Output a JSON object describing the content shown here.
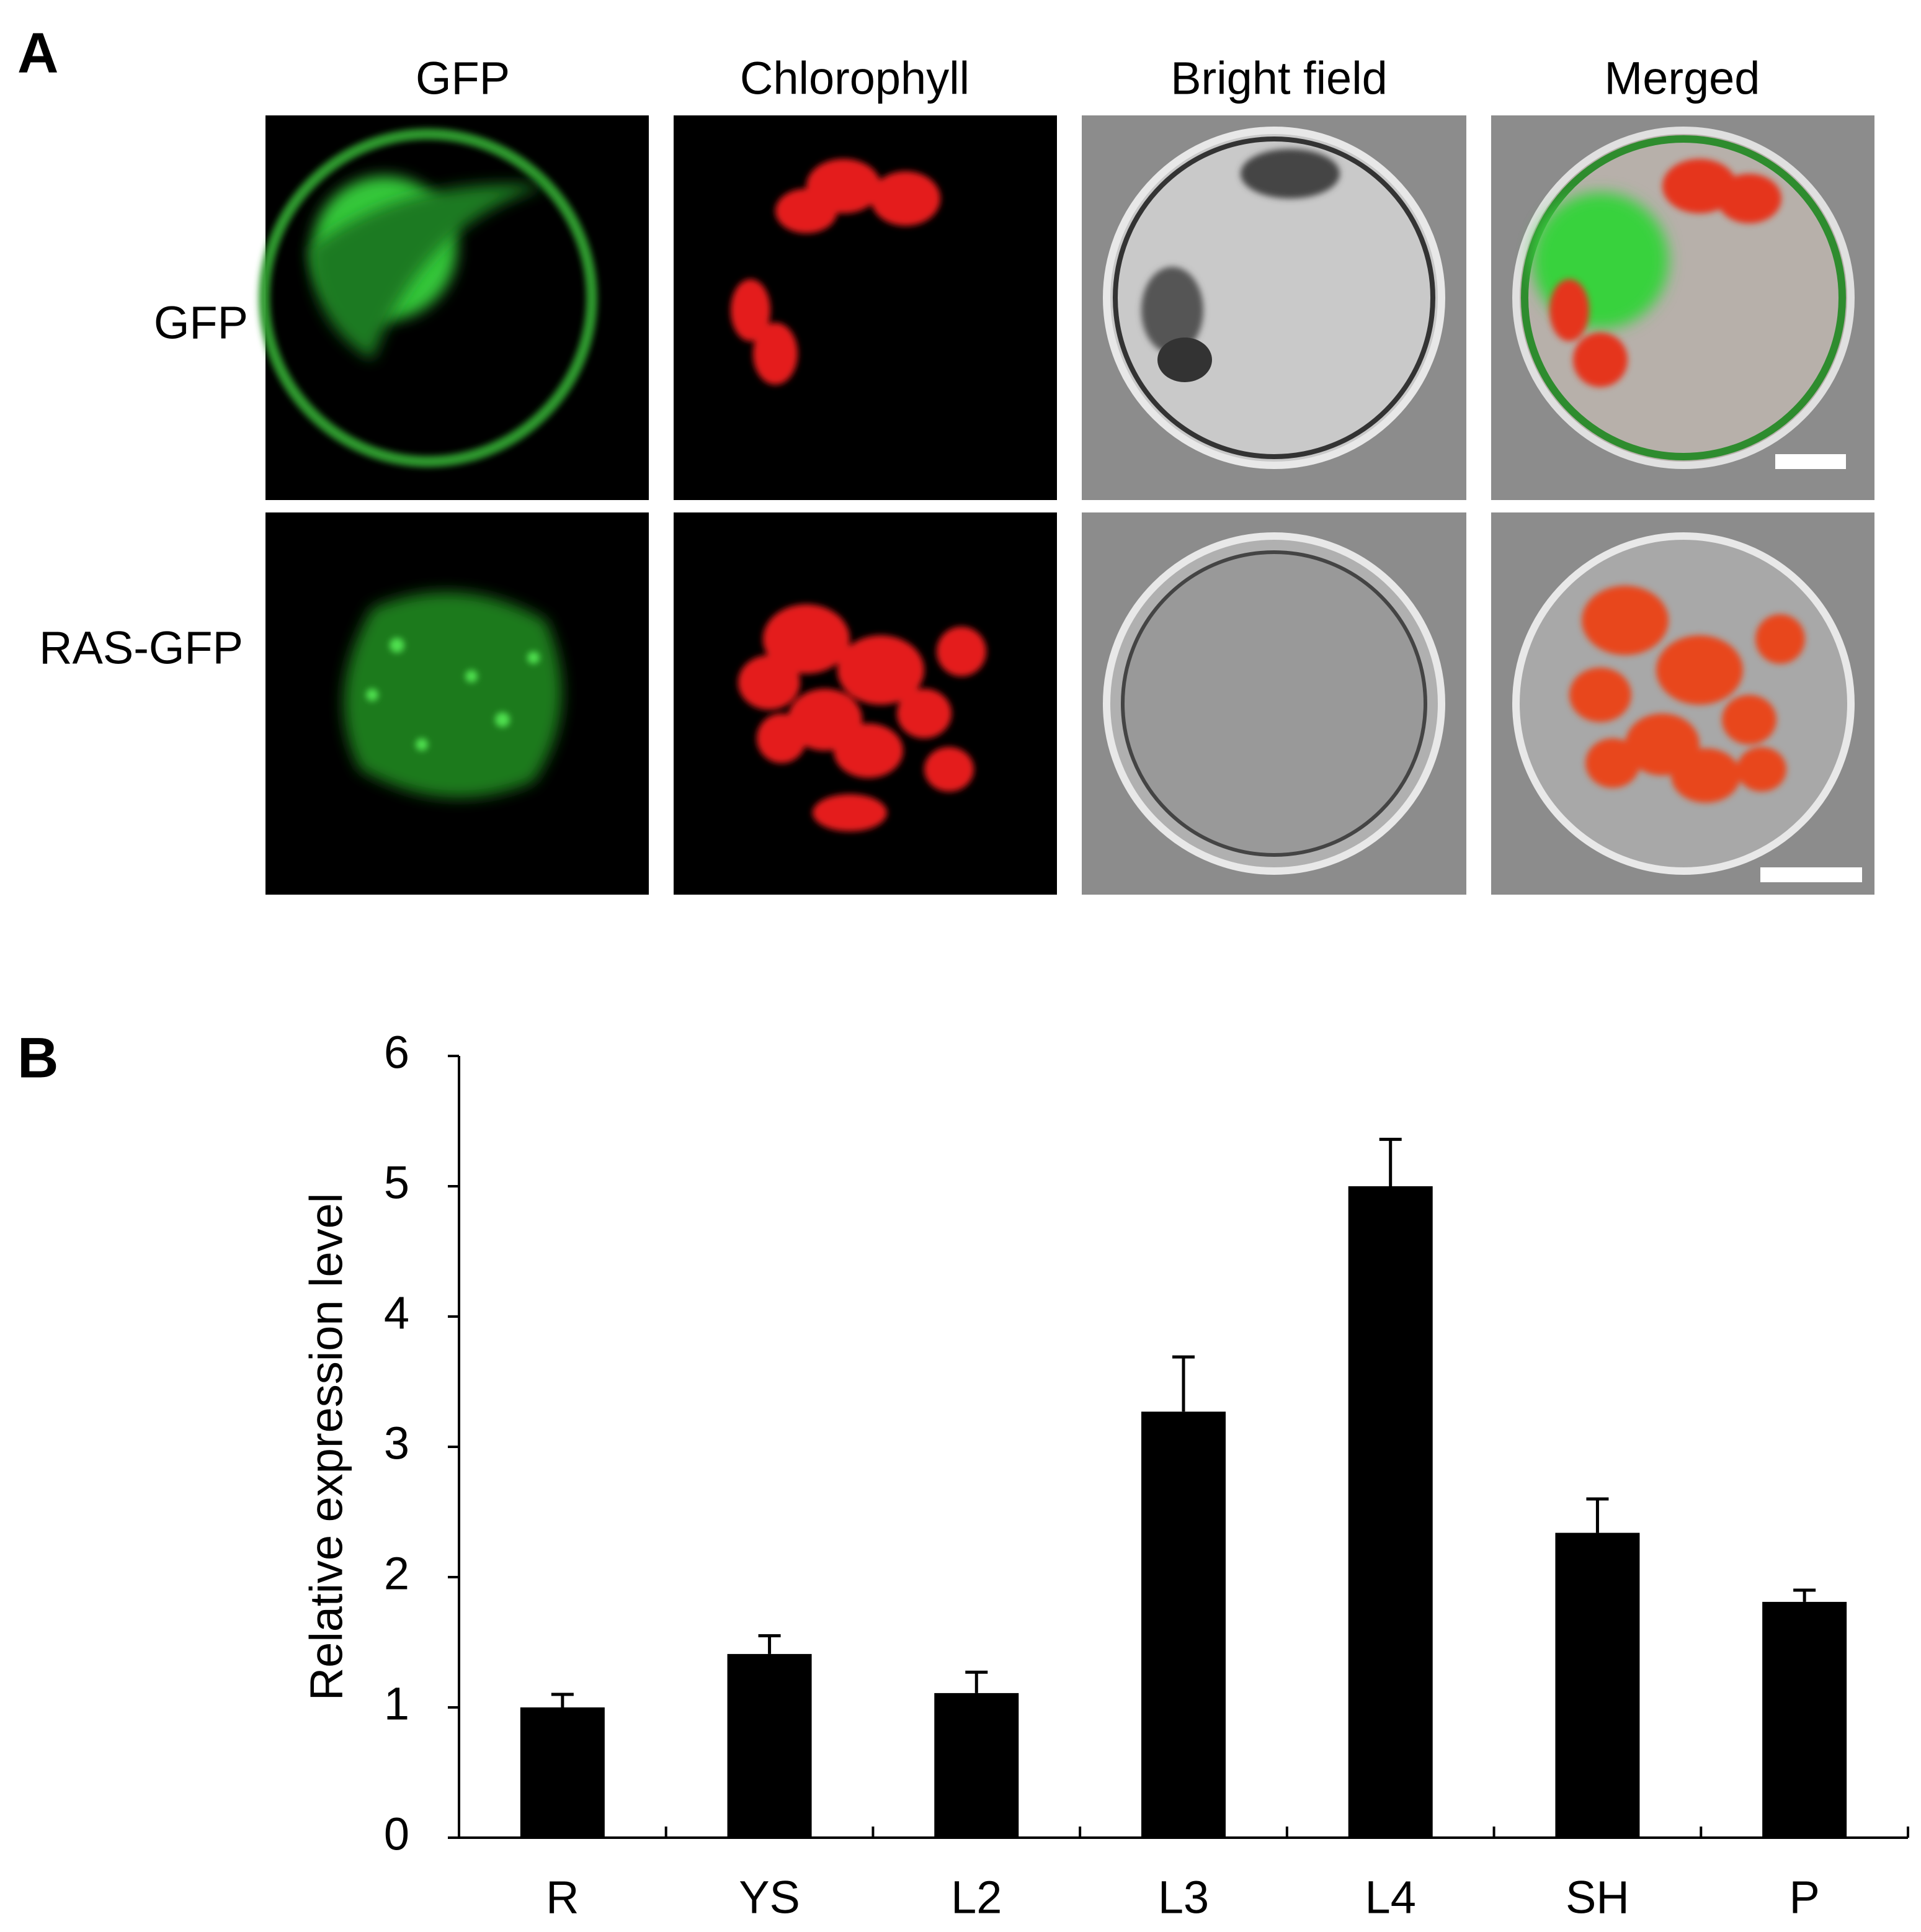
{
  "panel_a": {
    "label": "A",
    "columns": [
      "GFP",
      "Chlorophyll",
      "Bright field",
      "Merged"
    ],
    "rows": [
      "GFP",
      "RAS-GFP"
    ]
  },
  "chart_data": {
    "type": "bar",
    "panel_label": "B",
    "y_label": "Relative expression level",
    "categories": [
      "R",
      "YS",
      "L2",
      "L3",
      "L4",
      "SH",
      "P"
    ],
    "values": [
      1.0,
      1.41,
      1.11,
      3.27,
      5.0,
      2.34,
      1.81
    ],
    "errors": [
      0.1,
      0.14,
      0.16,
      0.42,
      0.36,
      0.26,
      0.09
    ],
    "color": "#000000",
    "ylim": [
      0,
      6
    ],
    "yticks": [
      0,
      1,
      2,
      3,
      4,
      5,
      6
    ],
    "grid": false
  }
}
